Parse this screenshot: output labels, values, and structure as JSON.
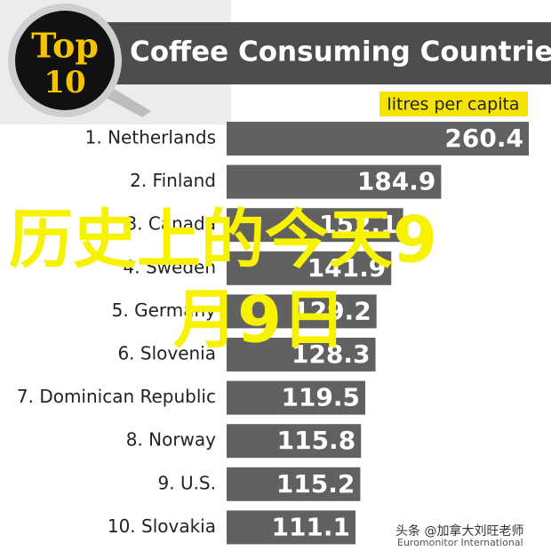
{
  "chart_data": {
    "type": "bar",
    "orientation": "horizontal",
    "badge": [
      "Top",
      "10"
    ],
    "title": "Coffee Consuming Countries",
    "subtitle": "litres per capita",
    "categories": [
      "1. Netherlands",
      "2. Finland",
      "3. Canada",
      "4. Sweden",
      "5. Germany",
      "6. Slovenia",
      "7. Dominican Republic",
      "8. Norway",
      "9. U.S.",
      "10. Slovakia"
    ],
    "values": [
      260.4,
      184.9,
      152.1,
      141.9,
      129.2,
      128.3,
      119.5,
      115.8,
      115.2,
      111.1
    ],
    "color": "#616161",
    "overlay": [
      "历史上的今天9",
      "月9日"
    ],
    "watermark": "头条 @加拿大刘旺老师",
    "source": "Euromonitor International"
  }
}
